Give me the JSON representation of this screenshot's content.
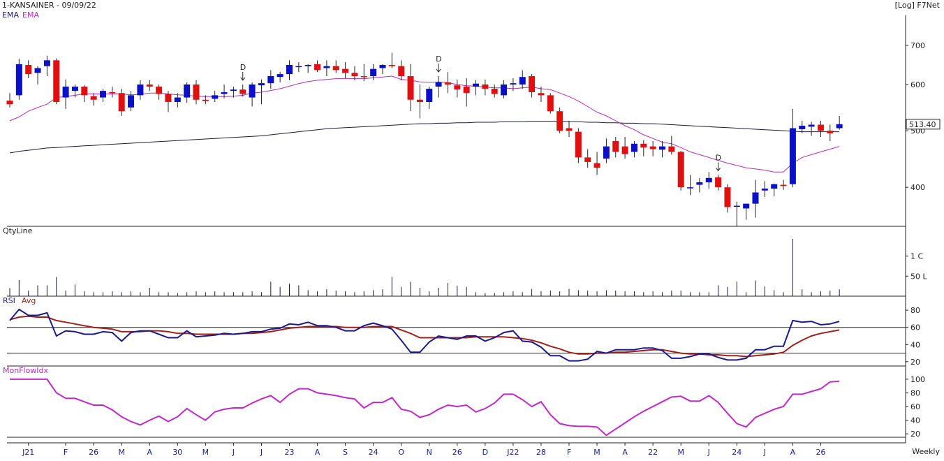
{
  "chart_data": {
    "type": "candlestick",
    "header": {
      "symbol_date": "1-KANSAINER - 09/09/22",
      "scale_note": "[Log] F7Net",
      "legend_prefix": "EMA",
      "legend_series": "EMA",
      "period": "Weekly"
    },
    "last_price_label": "513.40",
    "price_ticks": [
      "700",
      "600",
      "500",
      "400"
    ],
    "price_tick_values": [
      700,
      600,
      500,
      400
    ],
    "ylim": [
      343,
      775
    ],
    "log_scale": true,
    "x_labels": [
      "J21",
      "F",
      "26",
      "M",
      "A",
      "30",
      "M",
      "J",
      "J",
      "23",
      "A",
      "S",
      "24",
      "O",
      "N",
      "26",
      "D",
      "J22",
      "28",
      "F",
      "M",
      "A",
      "22",
      "M",
      "J",
      "24",
      "J",
      "A",
      "26"
    ],
    "x_label_index": [
      2,
      6,
      9,
      12,
      15,
      18,
      21,
      24,
      27,
      30,
      33,
      36,
      39,
      42,
      45,
      48,
      51,
      54,
      57,
      60,
      63,
      66,
      69,
      72,
      75,
      78,
      81,
      84,
      87
    ],
    "markers": [
      {
        "label": "D",
        "index": 25
      },
      {
        "label": "D",
        "index": 46
      },
      {
        "label": "D",
        "index": 76
      }
    ],
    "candles": [
      [
        563,
        580,
        548,
        555
      ],
      [
        575,
        664,
        565,
        650
      ],
      [
        648,
        660,
        615,
        625
      ],
      [
        628,
        645,
        600,
        640
      ],
      [
        645,
        672,
        620,
        660
      ],
      [
        660,
        665,
        555,
        560
      ],
      [
        570,
        612,
        545,
        595
      ],
      [
        585,
        600,
        570,
        595
      ],
      [
        595,
        598,
        560,
        575
      ],
      [
        573,
        580,
        552,
        565
      ],
      [
        570,
        590,
        560,
        585
      ],
      [
        582,
        595,
        570,
        580
      ],
      [
        580,
        590,
        530,
        540
      ],
      [
        548,
        585,
        540,
        575
      ],
      [
        575,
        610,
        565,
        600
      ],
      [
        600,
        610,
        585,
        595
      ],
      [
        595,
        600,
        565,
        578
      ],
      [
        578,
        585,
        538,
        560
      ],
      [
        560,
        580,
        548,
        570
      ],
      [
        570,
        605,
        558,
        600
      ],
      [
        600,
        610,
        555,
        565
      ],
      [
        565,
        575,
        555,
        562
      ],
      [
        567,
        585,
        560,
        575
      ],
      [
        578,
        600,
        568,
        582
      ],
      [
        585,
        595,
        570,
        588
      ],
      [
        588,
        600,
        572,
        578
      ],
      [
        570,
        605,
        550,
        600
      ],
      [
        598,
        612,
        555,
        603
      ],
      [
        603,
        635,
        590,
        620
      ],
      [
        618,
        630,
        605,
        625
      ],
      [
        625,
        660,
        610,
        648
      ],
      [
        645,
        655,
        630,
        645
      ],
      [
        645,
        650,
        628,
        648
      ],
      [
        650,
        660,
        630,
        635
      ],
      [
        640,
        660,
        620,
        645
      ],
      [
        645,
        660,
        628,
        635
      ],
      [
        638,
        655,
        615,
        628
      ],
      [
        628,
        645,
        610,
        620
      ],
      [
        620,
        650,
        608,
        618
      ],
      [
        620,
        650,
        610,
        638
      ],
      [
        640,
        650,
        625,
        648
      ],
      [
        648,
        680,
        640,
        645
      ],
      [
        645,
        660,
        610,
        620
      ],
      [
        620,
        650,
        540,
        565
      ],
      [
        565,
        600,
        525,
        560
      ],
      [
        560,
        595,
        545,
        590
      ],
      [
        595,
        620,
        570,
        605
      ],
      [
        605,
        630,
        580,
        600
      ],
      [
        598,
        612,
        570,
        588
      ],
      [
        595,
        615,
        550,
        580
      ],
      [
        595,
        610,
        575,
        602
      ],
      [
        600,
        612,
        575,
        590
      ],
      [
        590,
        600,
        570,
        578
      ],
      [
        575,
        610,
        568,
        600
      ],
      [
        600,
        615,
        585,
        603
      ],
      [
        600,
        635,
        590,
        618
      ],
      [
        620,
        625,
        570,
        582
      ],
      [
        580,
        595,
        560,
        575
      ],
      [
        575,
        580,
        535,
        540
      ],
      [
        540,
        548,
        495,
        500
      ],
      [
        505,
        520,
        488,
        500
      ],
      [
        498,
        505,
        440,
        450
      ],
      [
        450,
        465,
        432,
        442
      ],
      [
        440,
        460,
        420,
        432
      ],
      [
        448,
        485,
        440,
        470
      ],
      [
        480,
        488,
        450,
        460
      ],
      [
        470,
        488,
        448,
        456
      ],
      [
        460,
        480,
        450,
        475
      ],
      [
        475,
        482,
        452,
        468
      ],
      [
        470,
        480,
        452,
        465
      ],
      [
        464,
        480,
        450,
        470
      ],
      [
        470,
        490,
        455,
        460
      ],
      [
        460,
        462,
        395,
        400
      ],
      [
        400,
        420,
        388,
        400
      ],
      [
        404,
        415,
        392,
        408
      ],
      [
        408,
        425,
        398,
        415
      ],
      [
        416,
        420,
        395,
        400
      ],
      [
        400,
        405,
        362,
        370
      ],
      [
        372,
        378,
        343,
        372
      ],
      [
        368,
        375,
        352,
        375
      ],
      [
        375,
        412,
        355,
        392
      ],
      [
        395,
        410,
        385,
        398
      ],
      [
        398,
        406,
        386,
        405
      ],
      [
        404,
        412,
        396,
        402
      ],
      [
        405,
        545,
        400,
        505
      ],
      [
        503,
        520,
        495,
        510
      ],
      [
        508,
        518,
        490,
        512
      ],
      [
        512,
        520,
        488,
        500
      ],
      [
        500,
        512,
        480,
        495
      ],
      [
        505,
        530,
        502,
        513
      ]
    ],
    "ema_short": [
      520,
      528,
      540,
      548,
      555,
      570,
      572,
      575,
      578,
      578,
      578,
      578,
      578,
      576,
      577,
      580,
      580,
      578,
      576,
      575,
      573,
      572,
      572,
      572,
      573,
      575,
      580,
      582,
      586,
      590,
      596,
      602,
      607,
      610,
      612,
      614,
      614,
      614,
      614,
      616,
      618,
      620,
      612,
      610,
      606,
      605,
      606,
      604,
      600,
      597,
      596,
      594,
      592,
      592,
      590,
      592,
      594,
      590,
      588,
      580,
      572,
      562,
      550,
      538,
      530,
      520,
      510,
      502,
      492,
      485,
      478,
      475,
      468,
      460,
      455,
      450,
      445,
      440,
      436,
      432,
      430,
      428,
      425,
      425,
      440,
      450,
      455,
      460,
      465,
      470
    ],
    "ema_long": [
      458,
      461,
      463,
      465,
      467,
      468,
      469,
      470,
      471,
      472,
      473,
      474,
      475,
      476,
      477,
      478,
      479,
      480,
      481,
      482,
      483,
      484,
      485,
      486,
      487,
      488,
      489,
      490,
      492,
      494,
      496,
      498,
      500,
      502,
      504,
      505,
      506,
      507,
      508,
      509,
      510,
      511,
      512,
      513,
      514,
      514,
      515,
      515,
      516,
      516,
      517,
      517,
      517,
      518,
      518,
      518,
      519,
      519,
      519,
      519,
      518,
      518,
      517,
      517,
      516,
      516,
      515,
      515,
      514,
      514,
      513,
      512,
      511,
      510,
      509,
      508,
      507,
      506,
      505,
      504,
      503,
      502,
      501,
      500,
      499,
      498,
      498,
      498,
      498,
      498
    ],
    "qty": {
      "label": "QtyLine",
      "ticks": [
        "1 C",
        "50 L"
      ],
      "tick_values": [
        1.0,
        0.5
      ],
      "unit_max": 1.5,
      "values": [
        0.2,
        0.4,
        0.14,
        0.27,
        0.27,
        0.48,
        0.14,
        0.29,
        0.12,
        0.1,
        0.1,
        0.12,
        0.1,
        0.12,
        0.1,
        0.21,
        0.1,
        0.1,
        0.08,
        0.1,
        0.12,
        0.1,
        0.12,
        0.1,
        0.1,
        0.1,
        0.12,
        0.1,
        0.36,
        0.23,
        0.31,
        0.27,
        0.15,
        0.12,
        0.17,
        0.14,
        0.12,
        0.1,
        0.12,
        0.15,
        0.17,
        0.47,
        0.23,
        0.36,
        0.21,
        0.12,
        0.21,
        0.33,
        0.26,
        0.23,
        0.1,
        0.08,
        0.08,
        0.1,
        0.12,
        0.1,
        0.18,
        0.12,
        0.14,
        0.12,
        0.18,
        0.15,
        0.14,
        0.12,
        0.15,
        0.14,
        0.12,
        0.12,
        0.1,
        0.12,
        0.1,
        0.14,
        0.14,
        0.1,
        0.1,
        0.1,
        0.27,
        0.23,
        0.36,
        0.1,
        0.39,
        0.24,
        0.15,
        0.1,
        1.43,
        0.17,
        0.1,
        0.12,
        0.14,
        0.17
      ]
    },
    "rsi": {
      "label_main": "RSI",
      "label_avg": "Avg",
      "ticks": [
        "80",
        "60",
        "40",
        "20"
      ],
      "tick_values": [
        80,
        60,
        40,
        20
      ],
      "ylim": [
        15,
        85
      ],
      "ref_lines": [
        60,
        30
      ],
      "values": [
        68,
        81,
        74,
        74,
        77,
        50,
        56,
        55,
        52,
        52,
        55,
        54,
        44,
        54,
        56,
        56,
        52,
        48,
        48,
        56,
        49,
        50,
        51,
        53,
        52,
        53,
        55,
        55,
        58,
        59,
        64,
        63,
        66,
        62,
        62,
        60,
        56,
        56,
        62,
        65,
        62,
        58,
        45,
        31,
        31,
        43,
        50,
        48,
        46,
        50,
        50,
        44,
        48,
        54,
        56,
        44,
        43,
        37,
        27,
        27,
        21,
        21,
        23,
        32,
        30,
        34,
        34,
        34,
        36,
        36,
        33,
        24,
        24,
        26,
        29,
        29,
        25,
        22,
        22,
        24,
        34,
        34,
        38,
        38,
        68,
        66,
        67,
        63,
        64,
        67
      ],
      "avg": [
        69,
        72,
        73,
        72,
        72,
        68,
        66,
        64,
        62,
        60,
        59,
        58,
        55,
        55,
        55,
        56,
        56,
        55,
        53,
        53,
        52,
        52,
        52,
        52,
        52,
        53,
        53,
        54,
        55,
        57,
        59,
        60,
        61,
        61,
        61,
        61,
        60,
        60,
        60,
        61,
        61,
        61,
        57,
        53,
        48,
        48,
        48,
        48,
        48,
        48,
        49,
        49,
        49,
        49,
        48,
        47,
        45,
        42,
        38,
        35,
        31,
        29,
        29,
        30,
        30,
        31,
        31,
        32,
        33,
        34,
        34,
        32,
        30,
        29,
        29,
        28,
        28,
        27,
        27,
        26,
        27,
        28,
        29,
        31,
        39,
        45,
        50,
        53,
        55,
        57
      ]
    },
    "mfi": {
      "label": "MonFlowIdx",
      "ticks": [
        "100",
        "80",
        "60",
        "40",
        "20"
      ],
      "tick_values": [
        100,
        80,
        60,
        40,
        20
      ],
      "ylim": [
        15,
        105
      ],
      "values": [
        100,
        100,
        100,
        100,
        100,
        80,
        72,
        72,
        67,
        62,
        62,
        55,
        45,
        38,
        33,
        40,
        46,
        38,
        45,
        57,
        48,
        40,
        52,
        56,
        58,
        58,
        65,
        71,
        76,
        66,
        78,
        86,
        86,
        80,
        78,
        76,
        73,
        71,
        58,
        66,
        66,
        73,
        56,
        53,
        44,
        48,
        56,
        62,
        60,
        62,
        52,
        57,
        65,
        78,
        78,
        70,
        60,
        67,
        48,
        35,
        32,
        31,
        31,
        30,
        18,
        27,
        36,
        45,
        53,
        60,
        67,
        74,
        75,
        68,
        68,
        76,
        66,
        50,
        35,
        30,
        44,
        50,
        56,
        60,
        78,
        78,
        82,
        86,
        96,
        97
      ]
    }
  }
}
